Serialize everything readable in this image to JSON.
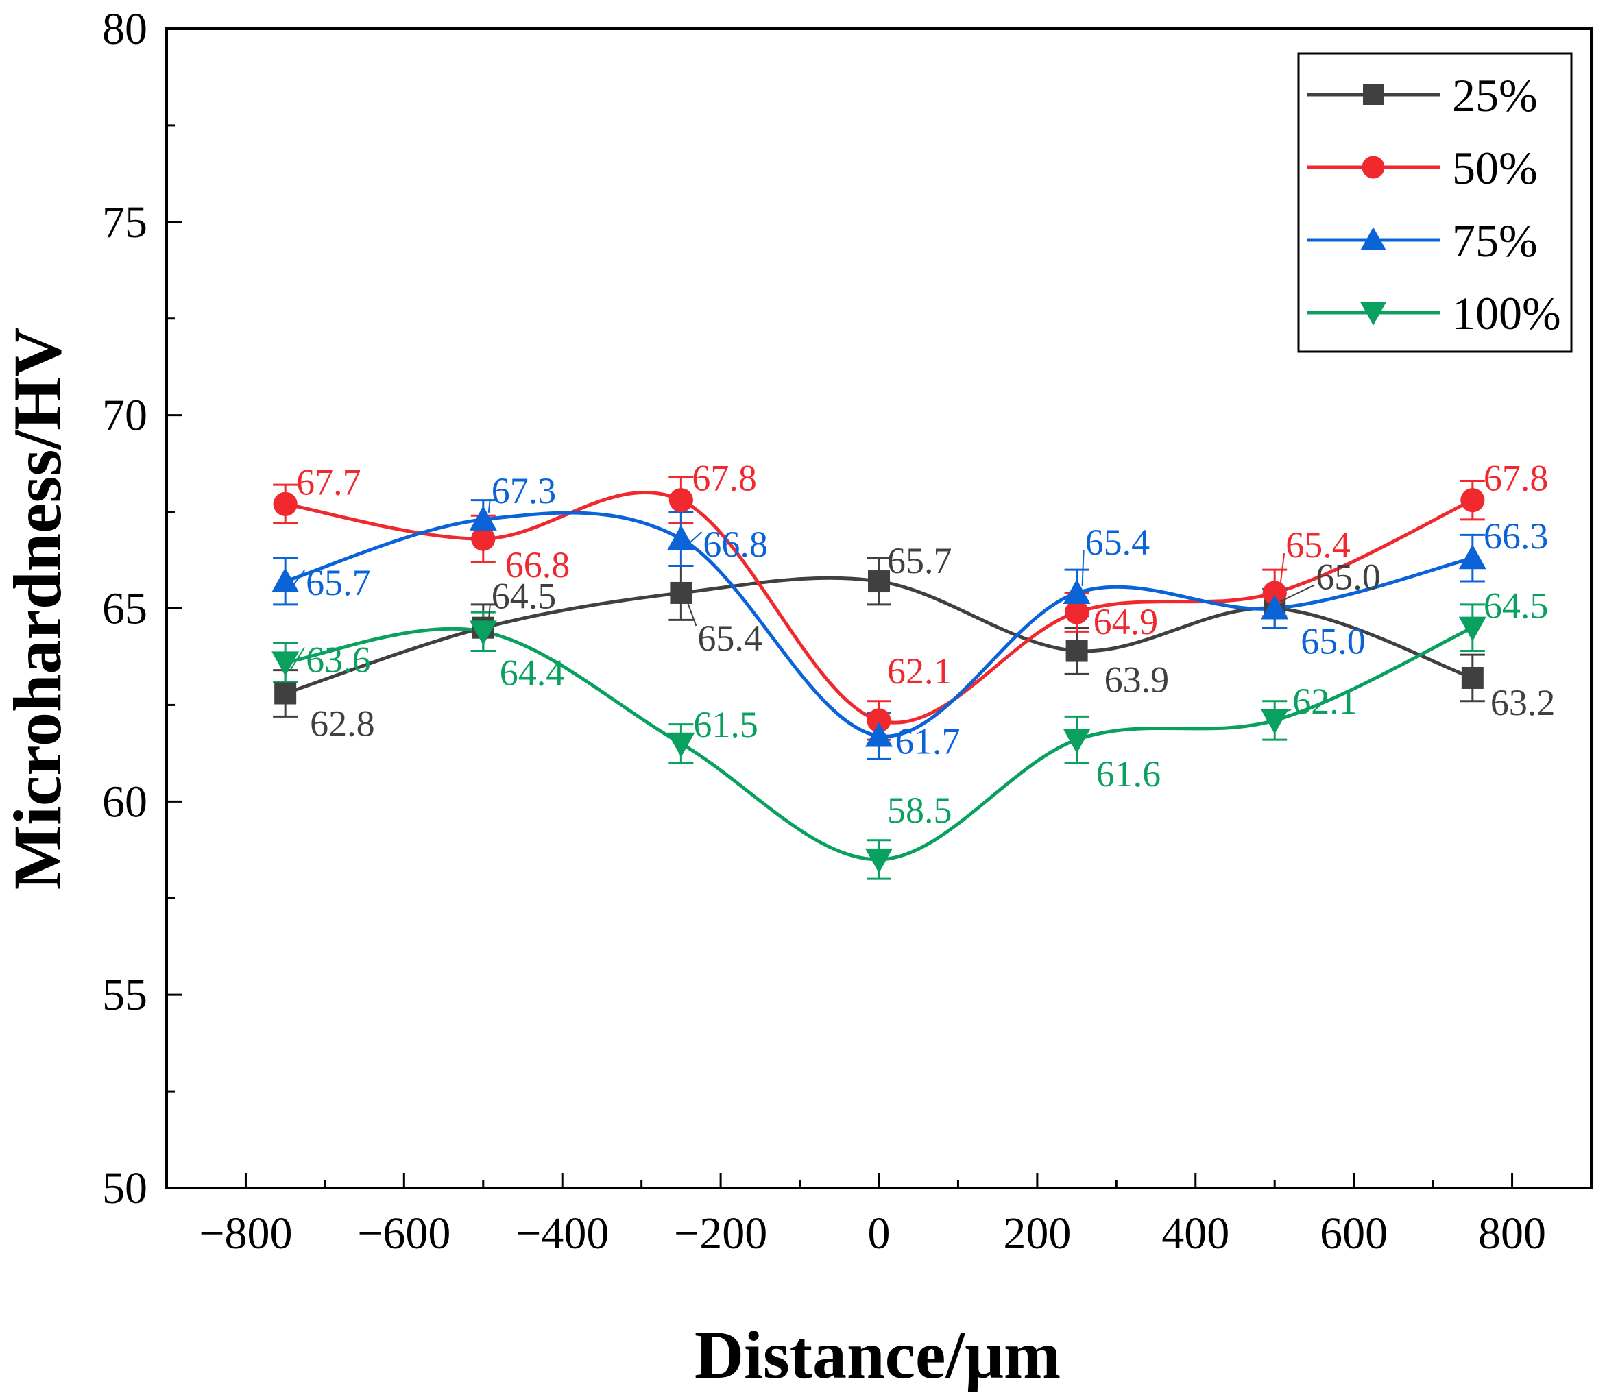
{
  "chart_data": {
    "type": "line",
    "title": "",
    "xlabel": "Distance/μm",
    "ylabel": "Microhardness/HV",
    "xlim": [
      -900,
      900
    ],
    "ylim": [
      50,
      80
    ],
    "xticks": [
      -800,
      -600,
      -400,
      -200,
      0,
      200,
      400,
      600,
      800
    ],
    "xtick_labels": [
      "−800",
      "−600",
      "−400",
      "−200",
      "0",
      "200",
      "400",
      "600",
      "800"
    ],
    "yticks": [
      50,
      55,
      60,
      65,
      70,
      75,
      80
    ],
    "ytick_labels": [
      "50",
      "55",
      "60",
      "65",
      "70",
      "75",
      "80"
    ],
    "legend_position": "top-right",
    "x": [
      -750,
      -500,
      -250,
      0,
      250,
      500,
      750
    ],
    "series": [
      {
        "name": "25%",
        "color": "#404040",
        "marker": "square",
        "values": [
          62.8,
          64.5,
          65.4,
          65.7,
          63.9,
          65.0,
          63.2
        ],
        "errors": [
          0.6,
          0.6,
          0.7,
          0.6,
          0.6,
          0.5,
          0.6
        ],
        "labels": [
          "62.8",
          "64.5",
          "65.4",
          "65.7",
          "63.9",
          "65.0",
          "63.2"
        ]
      },
      {
        "name": "50%",
        "color": "#f0292f",
        "marker": "circle",
        "values": [
          67.7,
          66.8,
          67.8,
          62.1,
          64.9,
          65.4,
          67.8
        ],
        "errors": [
          0.5,
          0.6,
          0.6,
          0.5,
          0.5,
          0.6,
          0.5
        ],
        "labels": [
          "67.7",
          "66.8",
          "67.8",
          "62.1",
          "64.9",
          "65.4",
          "67.8"
        ]
      },
      {
        "name": "75%",
        "color": "#0a64d8",
        "marker": "triangle-up",
        "values": [
          65.7,
          67.3,
          66.8,
          61.7,
          65.4,
          65.0,
          66.3
        ],
        "errors": [
          0.6,
          0.5,
          0.7,
          0.6,
          0.6,
          0.5,
          0.6
        ],
        "labels": [
          "65.7",
          "67.3",
          "66.8",
          "61.7",
          "65.4",
          "65.0",
          "66.3"
        ]
      },
      {
        "name": "100%",
        "color": "#0aa060",
        "marker": "triangle-down",
        "values": [
          63.6,
          64.4,
          61.5,
          58.5,
          61.6,
          62.1,
          64.5
        ],
        "errors": [
          0.5,
          0.5,
          0.5,
          0.5,
          0.6,
          0.5,
          0.6
        ],
        "labels": [
          "63.6",
          "64.4",
          "61.5",
          "58.5",
          "61.6",
          "62.1",
          "64.5"
        ]
      }
    ]
  }
}
